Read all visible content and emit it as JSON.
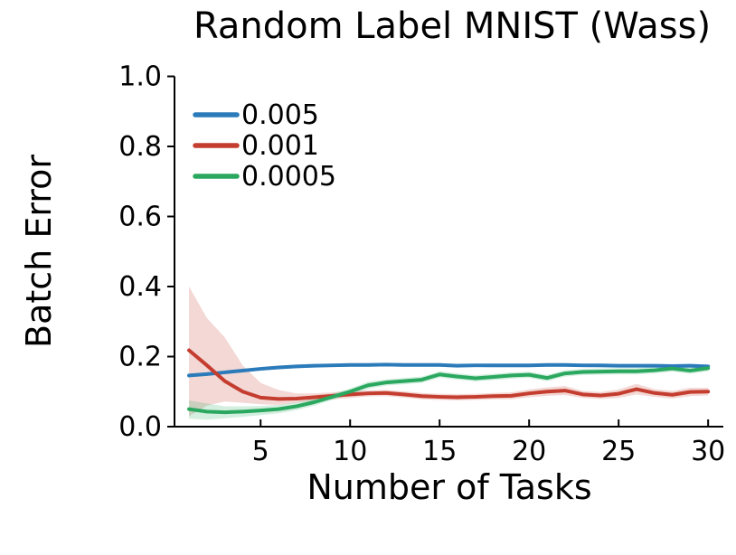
{
  "chart_data": {
    "type": "line",
    "title": "Random Label MNIST (Wass)",
    "xlabel": "Number of Tasks",
    "ylabel": "Batch Error",
    "xlim": [
      0.19,
      30.85
    ],
    "ylim": [
      0.0,
      1.0
    ],
    "xticks": [
      5,
      10,
      15,
      20,
      25,
      30
    ],
    "yticks": [
      0.0,
      0.2,
      0.4,
      0.6,
      0.8,
      1.0
    ],
    "grid": false,
    "legend_position": "top-left-inside",
    "axis_color": "#000000",
    "x": [
      1,
      2,
      3,
      4,
      5,
      6,
      7,
      8,
      9,
      10,
      11,
      12,
      13,
      14,
      15,
      16,
      17,
      18,
      19,
      20,
      21,
      22,
      23,
      24,
      25,
      26,
      27,
      28,
      29,
      30
    ],
    "series": [
      {
        "name": "0.005",
        "color": "#2b7bba",
        "band_color": "rgba(43,123,186,0.25)",
        "values": [
          0.146,
          0.15,
          0.155,
          0.16,
          0.165,
          0.169,
          0.172,
          0.174,
          0.175,
          0.176,
          0.176,
          0.177,
          0.176,
          0.176,
          0.176,
          0.174,
          0.175,
          0.175,
          0.175,
          0.175,
          0.176,
          0.176,
          0.175,
          0.175,
          0.174,
          0.174,
          0.174,
          0.173,
          0.174,
          0.172
        ],
        "lower": [
          0.141,
          0.145,
          0.15,
          0.155,
          0.16,
          0.164,
          0.167,
          0.169,
          0.17,
          0.171,
          0.171,
          0.172,
          0.171,
          0.171,
          0.171,
          0.169,
          0.17,
          0.17,
          0.17,
          0.17,
          0.171,
          0.171,
          0.17,
          0.17,
          0.169,
          0.169,
          0.169,
          0.168,
          0.169,
          0.167
        ],
        "upper": [
          0.151,
          0.155,
          0.16,
          0.165,
          0.17,
          0.174,
          0.177,
          0.179,
          0.18,
          0.181,
          0.181,
          0.182,
          0.181,
          0.181,
          0.181,
          0.179,
          0.18,
          0.18,
          0.18,
          0.18,
          0.181,
          0.181,
          0.18,
          0.18,
          0.179,
          0.179,
          0.179,
          0.178,
          0.179,
          0.177
        ]
      },
      {
        "name": "0.001",
        "color": "#c43d2f",
        "band_color": "rgba(196,61,47,0.20)",
        "values": [
          0.218,
          0.175,
          0.13,
          0.1,
          0.083,
          0.079,
          0.08,
          0.084,
          0.088,
          0.092,
          0.095,
          0.096,
          0.092,
          0.087,
          0.085,
          0.084,
          0.085,
          0.087,
          0.088,
          0.095,
          0.1,
          0.103,
          0.092,
          0.089,
          0.094,
          0.107,
          0.096,
          0.091,
          0.099,
          0.1
        ],
        "lower": [
          0.03,
          0.06,
          0.072,
          0.068,
          0.064,
          0.062,
          0.068,
          0.074,
          0.078,
          0.082,
          0.086,
          0.087,
          0.083,
          0.078,
          0.076,
          0.075,
          0.076,
          0.078,
          0.078,
          0.084,
          0.088,
          0.09,
          0.082,
          0.079,
          0.082,
          0.092,
          0.085,
          0.08,
          0.087,
          0.089
        ],
        "upper": [
          0.4,
          0.31,
          0.255,
          0.175,
          0.125,
          0.105,
          0.095,
          0.095,
          0.098,
          0.102,
          0.104,
          0.105,
          0.101,
          0.096,
          0.094,
          0.093,
          0.094,
          0.096,
          0.098,
          0.106,
          0.112,
          0.116,
          0.102,
          0.099,
          0.106,
          0.122,
          0.107,
          0.102,
          0.111,
          0.111
        ]
      },
      {
        "name": "0.0005",
        "color": "#2aa85f",
        "band_color": "rgba(42,168,95,0.20)",
        "values": [
          0.05,
          0.043,
          0.041,
          0.043,
          0.046,
          0.05,
          0.058,
          0.07,
          0.085,
          0.1,
          0.118,
          0.126,
          0.13,
          0.134,
          0.149,
          0.143,
          0.138,
          0.142,
          0.146,
          0.148,
          0.139,
          0.152,
          0.156,
          0.157,
          0.158,
          0.158,
          0.161,
          0.166,
          0.16,
          0.167
        ],
        "lower": [
          0.023,
          0.02,
          0.024,
          0.028,
          0.033,
          0.038,
          0.047,
          0.06,
          0.076,
          0.091,
          0.108,
          0.117,
          0.121,
          0.125,
          0.14,
          0.134,
          0.129,
          0.133,
          0.137,
          0.139,
          0.13,
          0.143,
          0.147,
          0.148,
          0.149,
          0.149,
          0.152,
          0.157,
          0.151,
          0.158
        ],
        "upper": [
          0.075,
          0.066,
          0.058,
          0.058,
          0.059,
          0.062,
          0.069,
          0.08,
          0.094,
          0.109,
          0.128,
          0.135,
          0.139,
          0.143,
          0.158,
          0.152,
          0.147,
          0.151,
          0.155,
          0.157,
          0.148,
          0.161,
          0.165,
          0.166,
          0.167,
          0.167,
          0.17,
          0.175,
          0.169,
          0.176
        ]
      }
    ]
  }
}
